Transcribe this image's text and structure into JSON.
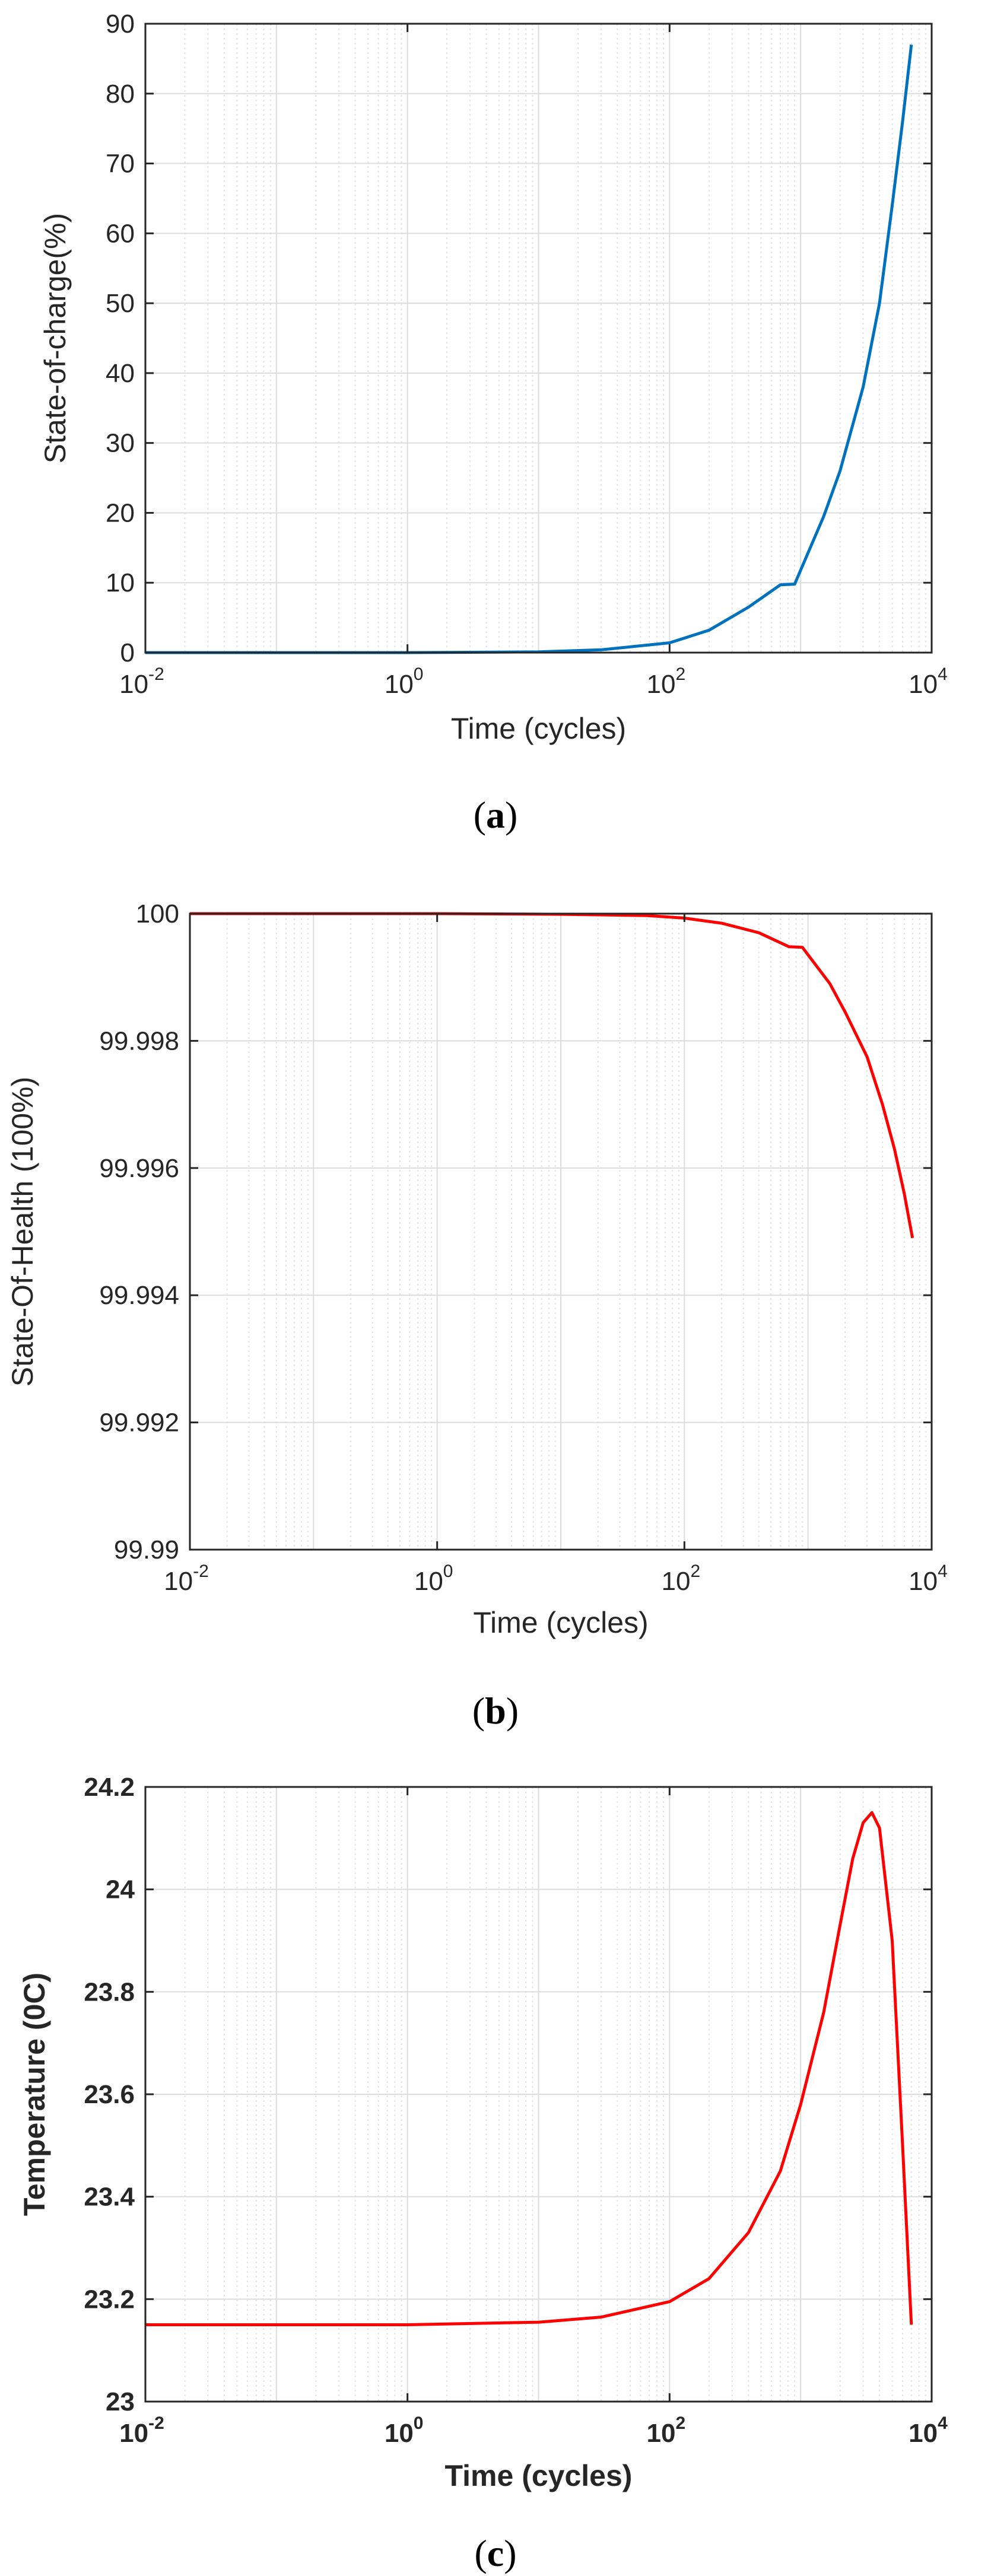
{
  "chart_data": [
    {
      "type": "line",
      "panel": "a",
      "caption": "(a)",
      "xlabel": "Time (cycles)",
      "ylabel": "State-of-charge(%)",
      "xscale": "log",
      "xlim": [
        0.01,
        10000
      ],
      "ylim": [
        0,
        90
      ],
      "yticks": [
        0,
        10,
        20,
        30,
        40,
        50,
        60,
        70,
        80,
        90
      ],
      "ytick_labels": [
        "0",
        "10",
        "20",
        "30",
        "40",
        "50",
        "60",
        "70",
        "80",
        "90"
      ],
      "xticks": [
        0.01,
        1,
        100,
        10000
      ],
      "xtick_labels": [
        [
          "10",
          "-2"
        ],
        [
          "10",
          "0"
        ],
        [
          "10",
          "2"
        ],
        [
          "10",
          "4"
        ]
      ],
      "grid": true,
      "bold_labels": false,
      "color": "#0072BD",
      "x": [
        0.01,
        1,
        10,
        30,
        100,
        200,
        400,
        700,
        900,
        1500,
        2000,
        3000,
        4000,
        5000,
        6000,
        7000
      ],
      "y": [
        0,
        0,
        0.1,
        0.4,
        1.4,
        3.2,
        6.5,
        9.7,
        9.8,
        19.5,
        26,
        38,
        50,
        64,
        76,
        87
      ]
    },
    {
      "type": "line",
      "panel": "b",
      "caption": "(b)",
      "xlabel": "Time (cycles)",
      "ylabel": "State-Of-Health (100%)",
      "xscale": "log",
      "xlim": [
        0.01,
        10000
      ],
      "ylim": [
        99.99,
        100
      ],
      "yticks": [
        99.99,
        99.992,
        99.994,
        99.996,
        99.998,
        100
      ],
      "ytick_labels": [
        "99.99",
        "99.992",
        "99.994",
        "99.996",
        "99.998",
        "100"
      ],
      "xticks": [
        0.01,
        1,
        100,
        10000
      ],
      "xtick_labels": [
        [
          "10",
          "-2"
        ],
        [
          "10",
          "0"
        ],
        [
          "10",
          "2"
        ],
        [
          "10",
          "4"
        ]
      ],
      "grid": true,
      "bold_labels": false,
      "color": "#FF0000",
      "x": [
        0.01,
        1,
        10,
        50,
        100,
        200,
        400,
        700,
        900,
        1500,
        2000,
        3000,
        4000,
        5000,
        6000,
        7000
      ],
      "y": [
        100,
        100,
        99.99999,
        99.99997,
        99.99993,
        99.99985,
        99.9997,
        99.99948,
        99.99947,
        99.9989,
        99.99845,
        99.99775,
        99.997,
        99.9963,
        99.9956,
        99.9949
      ]
    },
    {
      "type": "line",
      "panel": "c",
      "caption": "(c)",
      "xlabel": "Time (cycles)",
      "ylabel": "Temperature (0C)",
      "xscale": "log",
      "xlim": [
        0.01,
        10000
      ],
      "ylim": [
        23,
        24.2
      ],
      "yticks": [
        23,
        23.2,
        23.4,
        23.6,
        23.8,
        24,
        24.2
      ],
      "ytick_labels": [
        "23",
        "23.2",
        "23.4",
        "23.6",
        "23.8",
        "24",
        "24.2"
      ],
      "xticks": [
        0.01,
        1,
        100,
        10000
      ],
      "xtick_labels": [
        [
          "10",
          "-2"
        ],
        [
          "10",
          "0"
        ],
        [
          "10",
          "2"
        ],
        [
          "10",
          "4"
        ]
      ],
      "grid": true,
      "bold_labels": true,
      "color": "#FF0000",
      "x": [
        0.01,
        1,
        10,
        30,
        100,
        200,
        400,
        700,
        1000,
        1500,
        2000,
        2500,
        3000,
        3500,
        4000,
        5000,
        6000,
        7000
      ],
      "y": [
        23.15,
        23.15,
        23.155,
        23.165,
        23.195,
        23.24,
        23.33,
        23.45,
        23.58,
        23.76,
        23.93,
        24.06,
        24.13,
        24.15,
        24.12,
        23.9,
        23.5,
        23.15
      ]
    }
  ]
}
